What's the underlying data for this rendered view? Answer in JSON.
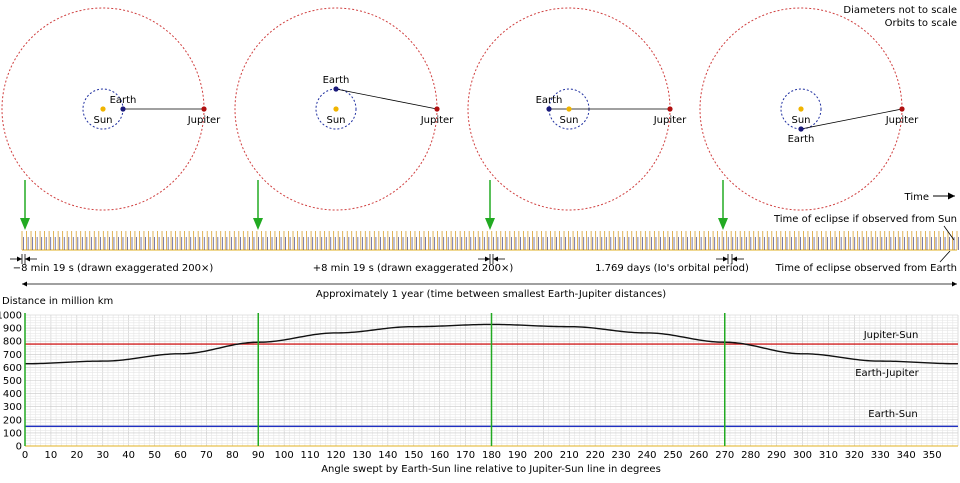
{
  "notes": {
    "line1": "Diameters not to scale",
    "line2": "Orbits to scale"
  },
  "orbits": {
    "sun_label": "Sun",
    "earth_label": "Earth",
    "jupiter_label": "Jupiter",
    "earth_angles_deg": [
      0,
      90,
      180,
      270
    ],
    "colors": {
      "sun": "#f0b400",
      "earth": "#1a1a7a",
      "jupiter": "#b01010",
      "jupiter_orbit": "#d04040",
      "earth_orbit": "#2030a0",
      "marker": "#22aa22"
    }
  },
  "timeline": {
    "time_label": "Time",
    "from_sun_label": "Time of eclipse if observed from Sun",
    "from_earth_label": "Time of eclipse observed from Earth",
    "minus_label": "−8 min 19 s (drawn exaggerated 200×)",
    "plus_label": "+8 min 19 s (drawn exaggerated 200×)",
    "io_label": "1.769 days (Io's orbital period)",
    "year_label": "Approximately 1 year (time between smallest Earth-Jupiter distances)"
  },
  "chart_data": {
    "type": "line",
    "title": "",
    "ylabel": "Distance in million km",
    "xlabel": "Angle swept by Earth-Sun line relative to Jupiter-Sun line in degrees",
    "xlim": [
      0,
      360
    ],
    "ylim": [
      0,
      1000
    ],
    "x_ticks": [
      0,
      10,
      20,
      30,
      40,
      50,
      60,
      70,
      80,
      90,
      100,
      110,
      120,
      130,
      140,
      150,
      160,
      170,
      180,
      190,
      200,
      210,
      220,
      230,
      240,
      250,
      260,
      270,
      280,
      290,
      300,
      310,
      320,
      330,
      340,
      350
    ],
    "y_ticks": [
      0,
      100,
      200,
      300,
      400,
      500,
      600,
      700,
      800,
      900,
      1000
    ],
    "grid": true,
    "vertical_markers": [
      0,
      90,
      180,
      270
    ],
    "series": [
      {
        "name": "Jupiter-Sun",
        "x": [
          0,
          360
        ],
        "y": [
          778,
          778
        ],
        "color": "#d02020"
      },
      {
        "name": "Earth-Sun",
        "x": [
          0,
          360
        ],
        "y": [
          150,
          150
        ],
        "color": "#2030c0"
      },
      {
        "name": "Earth-Jupiter",
        "x": [
          0,
          30,
          60,
          90,
          120,
          150,
          180,
          210,
          240,
          270,
          300,
          330,
          360
        ],
        "y": [
          628,
          648,
          704,
          792,
          863,
          911,
          928,
          911,
          863,
          792,
          704,
          648,
          628
        ],
        "color": "#111111"
      }
    ]
  }
}
